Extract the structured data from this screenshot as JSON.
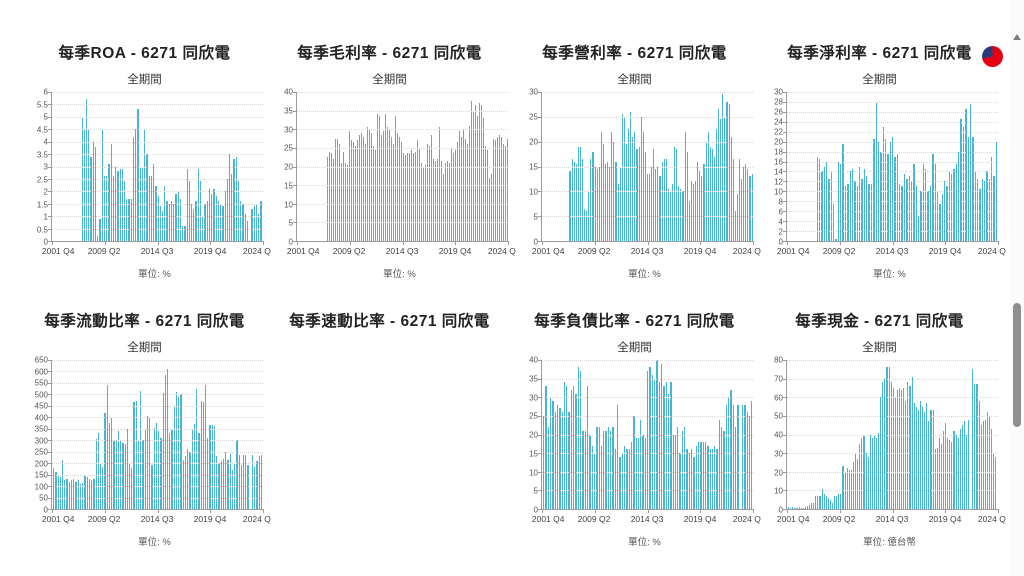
{
  "colors": {
    "bar": "#49b3d5",
    "grid": "#d8d8d8",
    "axis": "#9b9b9b",
    "logo_red": "#e60014",
    "logo_navy": "#2b3a7a",
    "scrollbar_thumb": "#8f8f8f"
  },
  "chart_data": [
    {
      "type": "bar",
      "title": "每季ROA - 6271 同欣電",
      "subtitle": "全期間",
      "unit_label": "單位: %",
      "ylim": [
        0,
        6
      ],
      "y_ticks": [
        6,
        5.5,
        5,
        4.5,
        4,
        3.5,
        3,
        2.5,
        2,
        1.5,
        1,
        0.5,
        0
      ],
      "x_ticks": [
        "2001 Q4",
        "2009 Q2",
        "2014 Q3",
        "2019 Q4",
        "2024 Q"
      ],
      "lead_fraction": 0.14,
      "values": [
        5.0,
        4.5,
        5.7,
        4.5,
        3.4,
        4.0,
        3.8,
        0.2,
        0.9,
        4.5,
        2.6,
        2.6,
        3.1,
        3.9,
        2.6,
        3.0,
        2.8,
        2.9,
        2.9,
        2.4,
        1.7,
        1.7,
        1.7,
        4.2,
        4.5,
        5.3,
        3.0,
        3.0,
        4.5,
        3.5,
        2.6,
        2.6,
        3.1,
        2.2,
        1.8,
        1.4,
        1.2,
        2.2,
        1.6,
        1.5,
        1.6,
        1.5,
        1.9,
        2.0,
        1.7,
        0.6,
        0.6,
        2.9,
        2.4,
        1.5,
        1.3,
        1.6,
        2.9,
        2.4,
        1.0,
        1.5,
        1.6,
        2.1,
        1.9,
        2.1,
        1.8,
        1.6,
        1.5,
        1.4,
        2.0,
        2.5,
        3.5,
        2.7,
        3.3,
        3.4,
        2.4,
        1.6,
        1.5,
        1.1,
        0.8,
        0,
        1.3,
        1.4,
        1.5,
        1.1,
        1.6
      ]
    },
    {
      "type": "bar",
      "title": "每季毛利率 - 6271 同欣電",
      "subtitle": "全期間",
      "unit_label": "單位: %",
      "ylim": [
        0,
        40
      ],
      "y_ticks": [
        40,
        35,
        30,
        25,
        20,
        15,
        10,
        5,
        0
      ],
      "x_ticks": [
        "2001 Q4",
        "2009 Q2",
        "2014 Q3",
        "2019 Q4",
        "2024 Q"
      ],
      "lead_fraction": 0.14,
      "values": [
        22.5,
        24,
        23.5,
        22,
        27.5,
        27.5,
        26,
        21,
        24,
        21,
        20.5,
        29.5,
        27,
        26.5,
        25.5,
        27,
        28.5,
        29,
        28,
        26,
        30.5,
        30,
        29,
        25.5,
        24.5,
        34,
        33.5,
        28.5,
        29.5,
        34,
        30.5,
        30,
        28,
        26,
        33.5,
        29,
        28,
        26.5,
        23.5,
        23,
        23.5,
        23.5,
        24.5,
        23.5,
        24,
        27,
        25,
        21,
        20,
        20.5,
        26,
        25.5,
        28.5,
        22,
        21.5,
        22,
        30.5,
        21.5,
        18,
        21,
        21.5,
        21,
        25,
        23.5,
        24.5,
        26.5,
        29.5,
        28,
        30,
        27.5,
        26,
        31,
        37.5,
        35,
        36.5,
        33.5,
        37,
        36.5,
        33,
        25.5,
        24.5,
        17,
        18,
        27.5,
        27,
        28,
        28.5,
        28,
        26,
        25.5,
        27.5
      ]
    },
    {
      "type": "bar",
      "title": "每季營利率 - 6271 同欣電",
      "subtitle": "全期間",
      "unit_label": "單位: %",
      "ylim": [
        0,
        30
      ],
      "y_ticks": [
        30,
        25,
        20,
        15,
        10,
        5,
        0
      ],
      "x_ticks": [
        "2001 Q4",
        "2009 Q2",
        "2014 Q3",
        "2019 Q4",
        "2024 Q"
      ],
      "lead_fraction": 0.13,
      "values": [
        14,
        16.5,
        16,
        15.5,
        19,
        19,
        16.5,
        6.5,
        6,
        10,
        16.5,
        18,
        15,
        14.5,
        15,
        22,
        19.5,
        15.5,
        16,
        15,
        22,
        20,
        16,
        11.5,
        15,
        25.5,
        25,
        19.5,
        22.5,
        26,
        21,
        22,
        18.5,
        19,
        25,
        22,
        18,
        13.5,
        13.5,
        15,
        18.5,
        14.5,
        15,
        13,
        16,
        16.5,
        16.5,
        10.5,
        10,
        11.5,
        19,
        18.5,
        11,
        10.5,
        10,
        22,
        18,
        8,
        12,
        11.5,
        12,
        16,
        14,
        13,
        15.5,
        20,
        22,
        19,
        18.5,
        17,
        22.5,
        26.5,
        24.5,
        29.5,
        25,
        28,
        27.5,
        21,
        16.5,
        6,
        9.5,
        16.5,
        12.5,
        15,
        15.5,
        14.5,
        13,
        13.5
      ]
    },
    {
      "type": "bar",
      "title": "每季淨利率 - 6271 同欣電",
      "subtitle": "全期間",
      "unit_label": "單位: %",
      "ylim": [
        0,
        30
      ],
      "y_ticks": [
        30,
        28,
        26,
        24,
        22,
        20,
        18,
        16,
        14,
        12,
        10,
        8,
        6,
        4,
        2,
        0
      ],
      "x_ticks": [
        "2001 Q4",
        "2009 Q2",
        "2014 Q3",
        "2019 Q4",
        "2024 Q"
      ],
      "lead_fraction": 0.14,
      "values": [
        17,
        16.5,
        14,
        15,
        16,
        12.5,
        14,
        7.5,
        0.5,
        16,
        15.5,
        19.5,
        11,
        11.5,
        14,
        14.5,
        12,
        11,
        15,
        12.5,
        14.5,
        13,
        11.5,
        11.5,
        20.5,
        27.8,
        20,
        18,
        23,
        20.5,
        17.5,
        20,
        21,
        17,
        17.5,
        11.5,
        11,
        13.5,
        12.5,
        13,
        12,
        15.5,
        11,
        5,
        10,
        15.5,
        14.5,
        10,
        11,
        17.5,
        15.5,
        10,
        7.5,
        9.5,
        12,
        11,
        14,
        13.5,
        14.5,
        15.5,
        18,
        24.5,
        23,
        26.5,
        21,
        27.5,
        21,
        14,
        12.5,
        10.5,
        12.5,
        12,
        14,
        12.5,
        17,
        13,
        20
      ]
    },
    {
      "type": "bar",
      "title": "每季流動比率 - 6271 同欣電",
      "subtitle": "全期間",
      "unit_label": "單位: %",
      "ylim": [
        0,
        650
      ],
      "y_ticks": [
        650,
        600,
        550,
        500,
        450,
        400,
        350,
        300,
        250,
        200,
        150,
        100,
        50,
        0
      ],
      "x_ticks": [
        "2001 Q4",
        "2009 Q2",
        "2014 Q3",
        "2019 Q4",
        "2024 Q"
      ],
      "lead_fraction": 0.005,
      "values": [
        180,
        160,
        145,
        140,
        215,
        125,
        130,
        120,
        125,
        130,
        120,
        125,
        110,
        115,
        145,
        140,
        130,
        125,
        130,
        305,
        330,
        195,
        185,
        420,
        540,
        375,
        395,
        295,
        300,
        340,
        295,
        290,
        285,
        350,
        195,
        180,
        465,
        470,
        300,
        515,
        300,
        345,
        405,
        395,
        190,
        355,
        375,
        340,
        310,
        505,
        585,
        610,
        330,
        345,
        450,
        510,
        490,
        500,
        215,
        230,
        260,
        250,
        350,
        370,
        525,
        330,
        470,
        465,
        540,
        310,
        365,
        365,
        360,
        230,
        200,
        210,
        220,
        250,
        215,
        240,
        170,
        195,
        300,
        235,
        190,
        235,
        235,
        190,
        0,
        235,
        185,
        210,
        230,
        235
      ]
    },
    {
      "type": "bar",
      "title": "每季速動比率 - 6271 同欣電",
      "empty": true
    },
    {
      "type": "bar",
      "title": "每季負債比率 - 6271 同欣電",
      "subtitle": "全期間",
      "unit_label": "單位: %",
      "ylim": [
        0,
        40
      ],
      "y_ticks": [
        40,
        35,
        30,
        25,
        20,
        15,
        10,
        5,
        0
      ],
      "x_ticks": [
        "2001 Q4",
        "2009 Q2",
        "2014 Q3",
        "2019 Q4",
        "2024 Q"
      ],
      "lead_fraction": 0.005,
      "values": [
        25,
        33,
        22,
        30,
        29,
        26,
        28,
        27,
        26,
        34,
        33,
        26,
        32,
        33,
        31,
        38,
        37,
        21,
        21,
        33,
        20,
        17,
        15,
        22,
        22,
        17,
        21,
        21,
        22,
        21,
        22,
        16,
        28,
        14,
        15,
        17,
        16,
        16,
        18,
        25,
        19,
        19,
        24,
        20,
        19,
        37,
        38,
        36,
        35,
        40,
        34,
        39,
        33,
        34,
        31,
        34,
        20,
        20,
        22,
        15,
        21,
        22,
        16,
        15,
        16,
        14,
        17,
        18,
        18,
        18,
        18,
        17,
        16,
        16,
        17,
        16,
        24,
        22,
        21,
        28,
        30,
        32,
        28,
        22,
        28,
        0,
        28,
        28,
        26,
        25,
        29
      ]
    },
    {
      "type": "bar",
      "title": "每季現金 - 6271 同欣電",
      "subtitle": "全期間",
      "unit_label": "單位: 億台幣",
      "ylim": [
        0,
        80
      ],
      "y_ticks": [
        80,
        70,
        60,
        50,
        40,
        30,
        20,
        10,
        0
      ],
      "x_ticks": [
        "2001 Q4",
        "2009 Q2",
        "2014 Q3",
        "2019 Q4",
        "2024 Q"
      ],
      "lead_fraction": 0.005,
      "values": [
        1,
        0.5,
        1,
        0.5,
        0.5,
        1,
        0.5,
        0.5,
        1,
        1.5,
        2,
        3,
        3,
        7,
        7,
        7,
        11,
        8,
        7,
        6,
        5,
        3,
        7,
        7,
        8,
        8,
        23,
        20,
        22,
        21,
        21,
        25,
        30,
        27,
        35,
        38,
        39,
        30,
        28,
        40,
        38,
        39,
        38,
        41,
        60,
        68,
        70,
        76,
        76,
        68,
        65,
        60,
        64,
        65,
        64,
        65,
        58,
        68,
        66,
        71,
        57,
        55,
        53,
        58,
        55,
        52,
        57,
        47,
        53,
        53,
        32,
        33,
        38,
        35,
        42,
        46,
        38,
        37,
        36,
        42,
        40,
        38,
        43,
        45,
        47,
        40,
        48,
        0,
        75,
        67,
        67,
        58,
        45,
        47,
        48,
        52,
        50,
        43,
        30,
        28
      ]
    }
  ]
}
